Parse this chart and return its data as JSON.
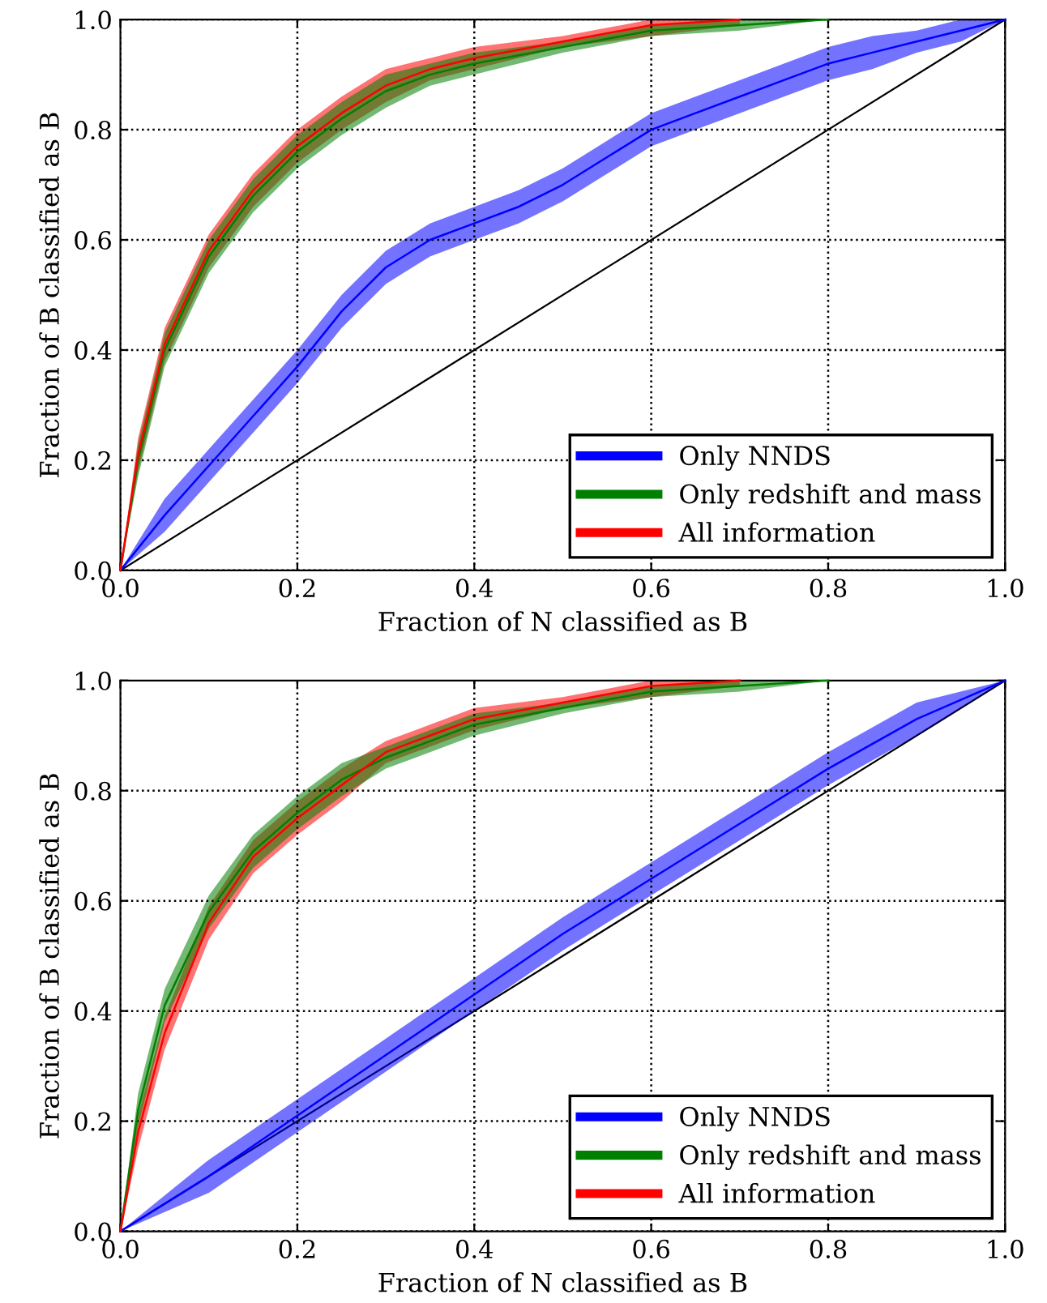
{
  "chart_data": [
    {
      "type": "line",
      "xlabel": "Fraction of N classified as B",
      "ylabel": "Fraction of B classified as B",
      "xlim": [
        0.0,
        1.0
      ],
      "ylim": [
        0.0,
        1.0
      ],
      "xticks": [
        {
          "value": 0.0,
          "label": "0.0"
        },
        {
          "value": 0.2,
          "label": "0.2"
        },
        {
          "value": 0.4,
          "label": "0.4"
        },
        {
          "value": 0.6,
          "label": "0.6"
        },
        {
          "value": 0.8,
          "label": "0.8"
        },
        {
          "value": 1.0,
          "label": "1.0"
        }
      ],
      "yticks": [
        {
          "value": 0.0,
          "label": "0.0"
        },
        {
          "value": 0.2,
          "label": "0.2"
        },
        {
          "value": 0.4,
          "label": "0.4"
        },
        {
          "value": 0.6,
          "label": "0.6"
        },
        {
          "value": 0.8,
          "label": "0.8"
        },
        {
          "value": 1.0,
          "label": "1.0"
        }
      ],
      "grid": true,
      "legend": "bottom right",
      "line_style": "solid",
      "marker": "none",
      "series": [
        {
          "name": "Only NNDS",
          "color": "#0000ff",
          "x": [
            0,
            0.05,
            0.1,
            0.15,
            0.2,
            0.25,
            0.3,
            0.35,
            0.4,
            0.45,
            0.5,
            0.55,
            0.6,
            0.65,
            0.7,
            0.75,
            0.8,
            0.85,
            0.9,
            0.95,
            1.0
          ],
          "values": [
            0,
            0.1,
            0.19,
            0.28,
            0.37,
            0.47,
            0.55,
            0.6,
            0.63,
            0.66,
            0.7,
            0.75,
            0.8,
            0.83,
            0.86,
            0.89,
            0.92,
            0.94,
            0.96,
            0.98,
            1.0
          ],
          "lower": [
            0,
            0.07,
            0.16,
            0.25,
            0.34,
            0.44,
            0.52,
            0.57,
            0.6,
            0.63,
            0.67,
            0.72,
            0.77,
            0.8,
            0.83,
            0.86,
            0.89,
            0.91,
            0.94,
            0.96,
            1.0
          ],
          "upper": [
            0,
            0.13,
            0.22,
            0.31,
            0.4,
            0.5,
            0.58,
            0.63,
            0.66,
            0.69,
            0.73,
            0.78,
            0.83,
            0.86,
            0.89,
            0.92,
            0.95,
            0.97,
            0.98,
            1.0,
            1.0
          ]
        },
        {
          "name": "Only redshift and mass",
          "color": "#008000",
          "x": [
            0,
            0.02,
            0.05,
            0.1,
            0.15,
            0.2,
            0.25,
            0.3,
            0.35,
            0.4,
            0.5,
            0.6,
            0.7,
            0.8
          ],
          "values": [
            0,
            0.2,
            0.4,
            0.57,
            0.68,
            0.76,
            0.82,
            0.87,
            0.9,
            0.92,
            0.95,
            0.98,
            0.99,
            1.0
          ],
          "lower": [
            0,
            0.17,
            0.37,
            0.54,
            0.65,
            0.73,
            0.79,
            0.84,
            0.88,
            0.9,
            0.94,
            0.97,
            0.98,
            1.0
          ],
          "upper": [
            0,
            0.23,
            0.43,
            0.6,
            0.71,
            0.79,
            0.85,
            0.9,
            0.92,
            0.94,
            0.96,
            0.99,
            1.0,
            1.0
          ]
        },
        {
          "name": "All information",
          "color": "#ff0000",
          "x": [
            0,
            0.02,
            0.05,
            0.1,
            0.15,
            0.2,
            0.25,
            0.3,
            0.35,
            0.4,
            0.5,
            0.6,
            0.7
          ],
          "values": [
            0,
            0.21,
            0.41,
            0.58,
            0.69,
            0.77,
            0.83,
            0.88,
            0.91,
            0.93,
            0.96,
            0.99,
            1.0
          ],
          "lower": [
            0,
            0.18,
            0.38,
            0.55,
            0.66,
            0.74,
            0.8,
            0.85,
            0.89,
            0.91,
            0.95,
            0.97,
            0.99
          ],
          "upper": [
            0,
            0.24,
            0.44,
            0.61,
            0.72,
            0.8,
            0.86,
            0.91,
            0.93,
            0.95,
            0.97,
            1.0,
            1.0
          ]
        },
        {
          "color": "#000000",
          "x": [
            0,
            1.0
          ],
          "values": [
            0,
            1.0
          ]
        }
      ]
    },
    {
      "type": "line",
      "xlabel": "Fraction of N classified as B",
      "ylabel": "Fraction of B classified as B",
      "xlim": [
        0.0,
        1.0
      ],
      "ylim": [
        0.0,
        1.0
      ],
      "xticks": [
        {
          "value": 0.0,
          "label": "0.0"
        },
        {
          "value": 0.2,
          "label": "0.2"
        },
        {
          "value": 0.4,
          "label": "0.4"
        },
        {
          "value": 0.6,
          "label": "0.6"
        },
        {
          "value": 0.8,
          "label": "0.8"
        },
        {
          "value": 1.0,
          "label": "1.0"
        }
      ],
      "yticks": [
        {
          "value": 0.0,
          "label": "0.0"
        },
        {
          "value": 0.2,
          "label": "0.2"
        },
        {
          "value": 0.4,
          "label": "0.4"
        },
        {
          "value": 0.6,
          "label": "0.6"
        },
        {
          "value": 0.8,
          "label": "0.8"
        },
        {
          "value": 1.0,
          "label": "1.0"
        }
      ],
      "grid": true,
      "legend": "bottom right",
      "line_style": "solid",
      "marker": "none",
      "series": [
        {
          "name": "Only NNDS",
          "color": "#0000ff",
          "x": [
            0,
            0.1,
            0.2,
            0.3,
            0.4,
            0.5,
            0.6,
            0.7,
            0.8,
            0.9,
            1.0
          ],
          "values": [
            0,
            0.1,
            0.21,
            0.32,
            0.43,
            0.54,
            0.64,
            0.74,
            0.84,
            0.93,
            1.0
          ],
          "lower": [
            0,
            0.07,
            0.18,
            0.29,
            0.4,
            0.51,
            0.61,
            0.71,
            0.81,
            0.9,
            1.0
          ],
          "upper": [
            0,
            0.13,
            0.24,
            0.35,
            0.46,
            0.57,
            0.67,
            0.77,
            0.87,
            0.96,
            1.0
          ]
        },
        {
          "name": "Only redshift and mass",
          "color": "#008000",
          "x": [
            0,
            0.02,
            0.05,
            0.1,
            0.15,
            0.2,
            0.25,
            0.3,
            0.35,
            0.4,
            0.5,
            0.6,
            0.7,
            0.8
          ],
          "values": [
            0,
            0.22,
            0.41,
            0.58,
            0.69,
            0.76,
            0.82,
            0.86,
            0.89,
            0.92,
            0.95,
            0.98,
            0.99,
            1.0
          ],
          "lower": [
            0,
            0.19,
            0.38,
            0.55,
            0.66,
            0.73,
            0.79,
            0.84,
            0.87,
            0.9,
            0.94,
            0.97,
            0.98,
            1.0
          ],
          "upper": [
            0,
            0.25,
            0.44,
            0.61,
            0.72,
            0.79,
            0.85,
            0.88,
            0.91,
            0.94,
            0.96,
            0.99,
            1.0,
            1.0
          ]
        },
        {
          "name": "All information",
          "color": "#ff0000",
          "x": [
            0,
            0.02,
            0.05,
            0.1,
            0.15,
            0.2,
            0.25,
            0.3,
            0.35,
            0.4,
            0.5,
            0.6,
            0.7
          ],
          "values": [
            0,
            0.18,
            0.36,
            0.56,
            0.68,
            0.75,
            0.81,
            0.87,
            0.9,
            0.93,
            0.96,
            0.99,
            1.0
          ],
          "lower": [
            0,
            0.15,
            0.33,
            0.53,
            0.65,
            0.72,
            0.78,
            0.85,
            0.88,
            0.91,
            0.95,
            0.97,
            0.99
          ],
          "upper": [
            0,
            0.21,
            0.39,
            0.59,
            0.71,
            0.78,
            0.84,
            0.89,
            0.92,
            0.95,
            0.97,
            1.0,
            1.0
          ]
        },
        {
          "color": "#000000",
          "x": [
            0,
            1.0
          ],
          "values": [
            0,
            1.0
          ]
        }
      ]
    }
  ]
}
